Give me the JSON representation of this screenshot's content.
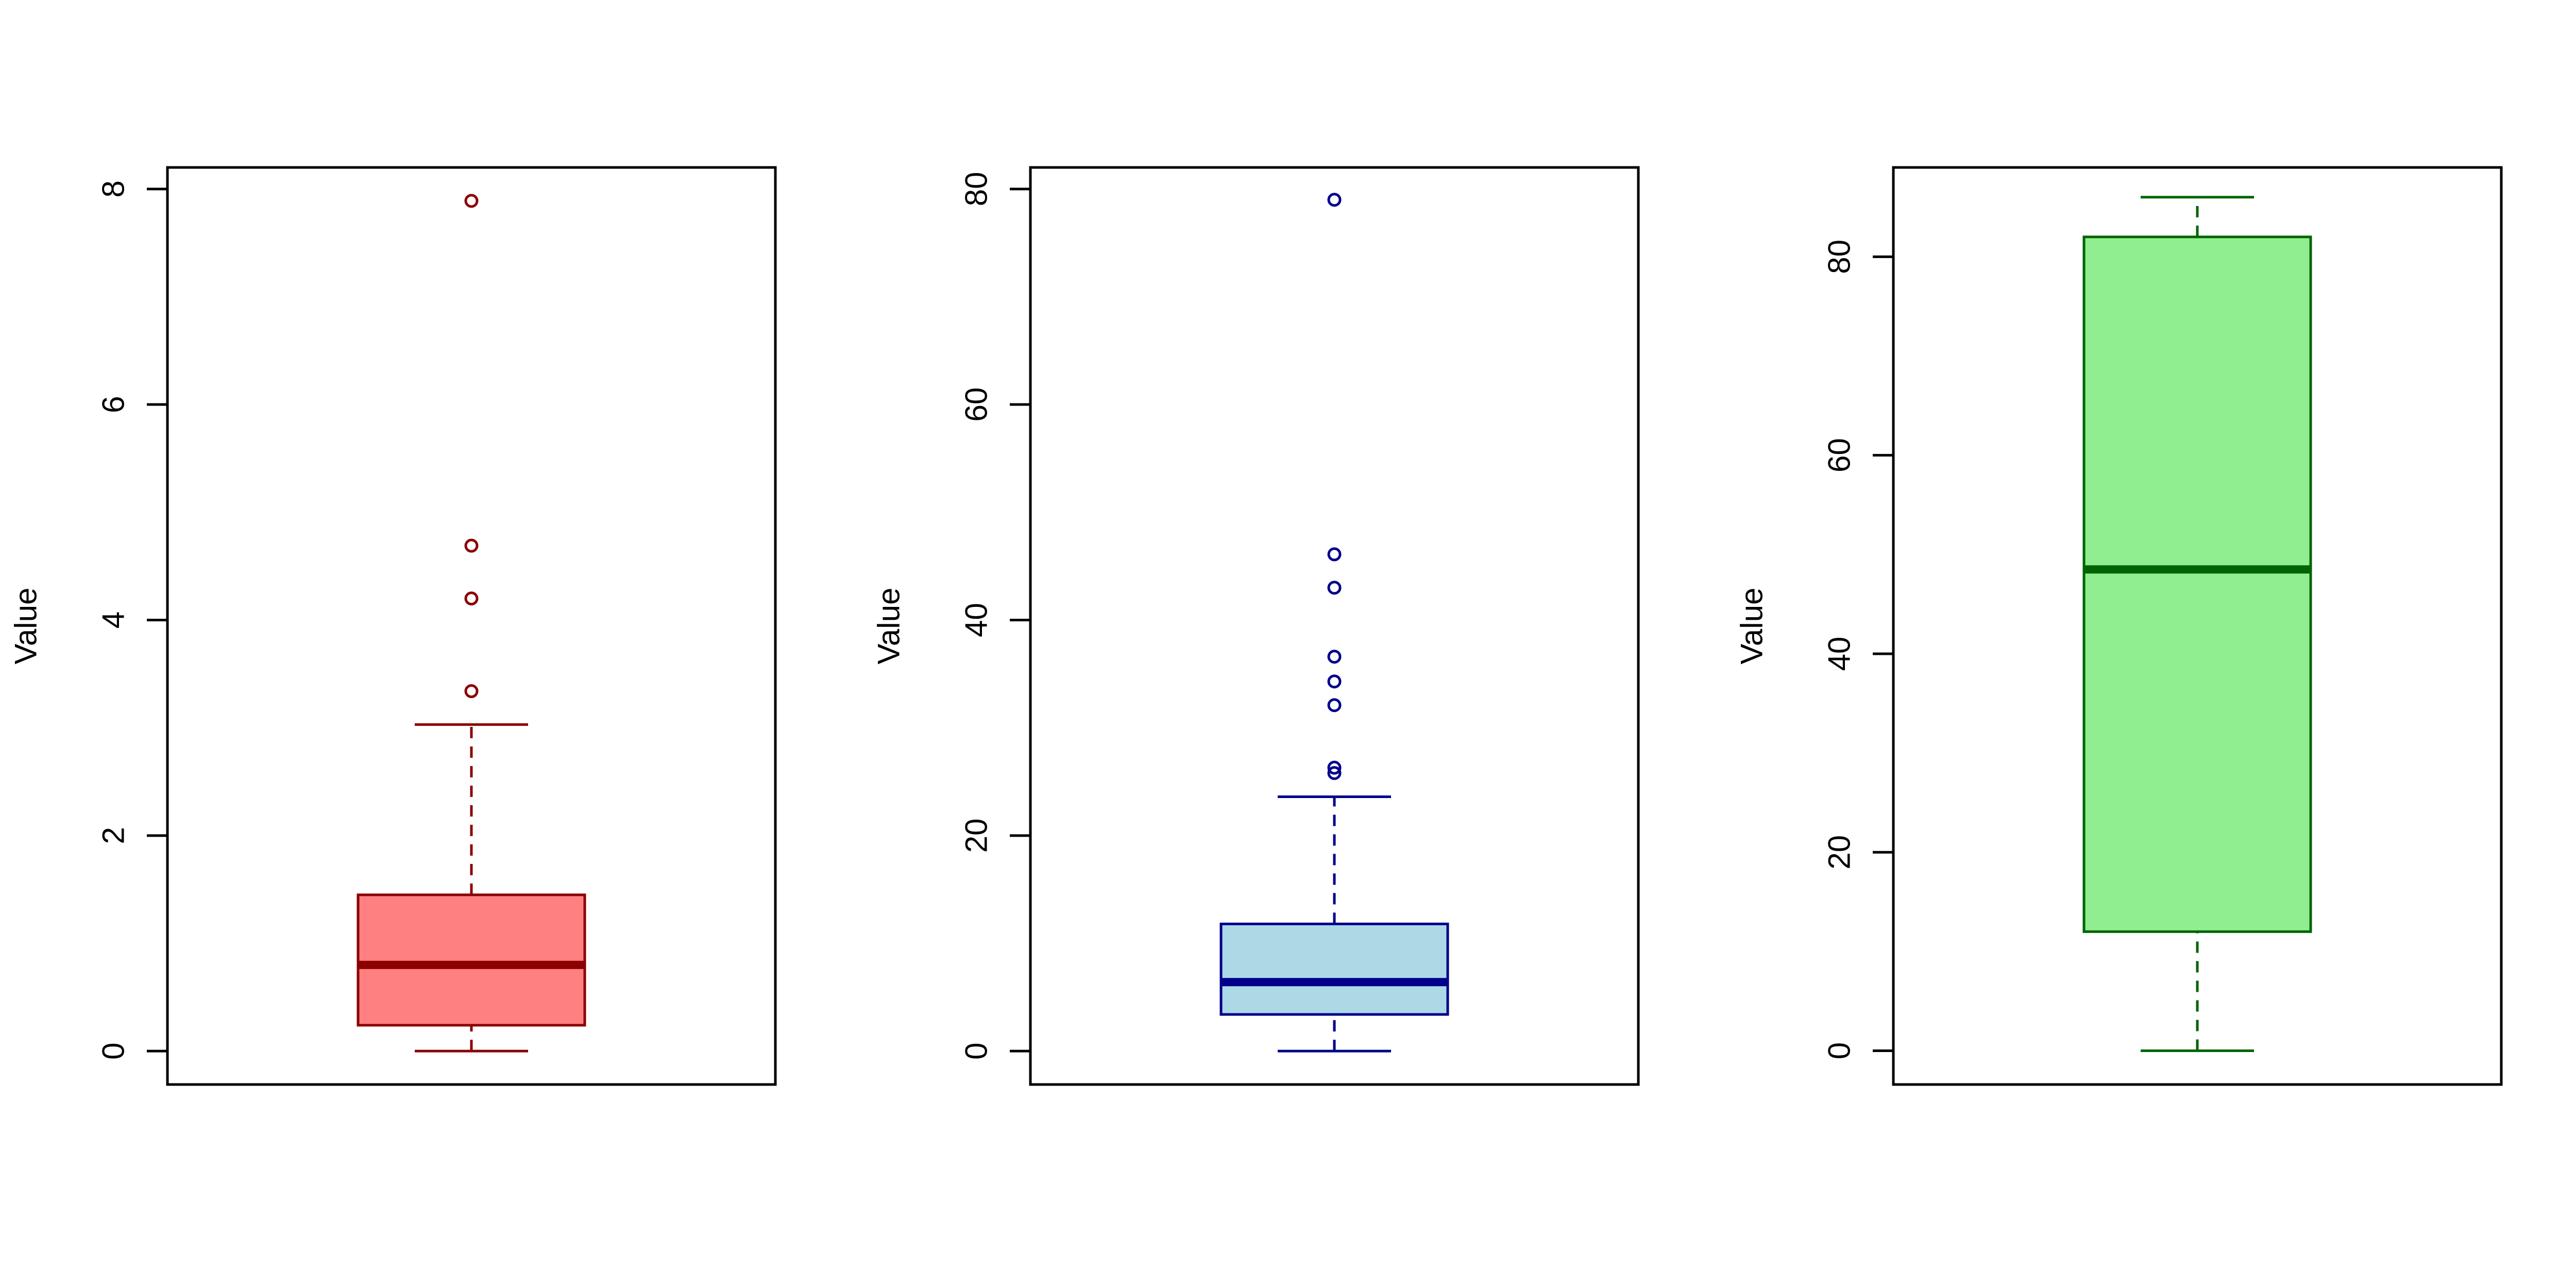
{
  "chart_data": [
    {
      "type": "boxplot",
      "ylabel": "Value",
      "yticks": [
        0,
        2,
        4,
        6,
        8
      ],
      "ylim": [
        -0.31,
        8.2
      ],
      "grid": false,
      "colors": {
        "fill": "#ff8080",
        "stroke": "#8b0000"
      },
      "box": {
        "min": 0.0,
        "q1": 0.24,
        "median": 0.8,
        "q3": 1.45,
        "max": 3.03
      },
      "outliers": [
        3.34,
        4.2,
        4.69,
        7.89
      ]
    },
    {
      "type": "boxplot",
      "ylabel": "Value",
      "yticks": [
        0,
        20,
        40,
        60,
        80
      ],
      "ylim": [
        -3.1,
        82.0
      ],
      "grid": false,
      "colors": {
        "fill": "#add8e6",
        "stroke": "#00008b"
      },
      "box": {
        "min": 0.0,
        "q1": 3.4,
        "median": 6.4,
        "q3": 11.8,
        "max": 23.6
      },
      "outliers": [
        25.8,
        26.3,
        32.1,
        34.3,
        36.6,
        43.0,
        46.1,
        79.0
      ]
    },
    {
      "type": "boxplot",
      "ylabel": "Value",
      "yticks": [
        0,
        20,
        40,
        60,
        80
      ],
      "ylim": [
        -3.4,
        89.0
      ],
      "grid": false,
      "colors": {
        "fill": "#90ee90",
        "stroke": "#006400"
      },
      "box": {
        "min": 0.0,
        "q1": 12.0,
        "median": 48.5,
        "q3": 82.0,
        "max": 86.0
      },
      "outliers": []
    }
  ]
}
